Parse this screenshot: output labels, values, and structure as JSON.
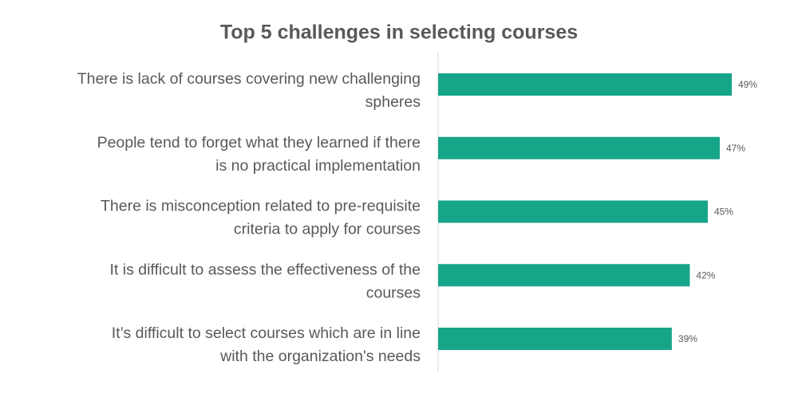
{
  "chart_data": {
    "type": "bar",
    "orientation": "horizontal",
    "title": "Top 5 challenges in selecting courses",
    "categories": [
      [
        "There is lack of courses covering new challenging",
        "spheres"
      ],
      [
        "People tend to forget what they learned if there",
        "is no practical implementation"
      ],
      [
        "There is misconception related to pre-requisite",
        "criteria to apply for courses"
      ],
      [
        "It is difficult to assess the effectiveness of the",
        "courses"
      ],
      [
        "It’s difficult to select courses which are in line",
        "with the organization's needs"
      ]
    ],
    "values": [
      49,
      47,
      45,
      42,
      39
    ],
    "value_labels": [
      "49%",
      "47%",
      "45%",
      "42%",
      "39%"
    ],
    "color": "#17a589"
  }
}
